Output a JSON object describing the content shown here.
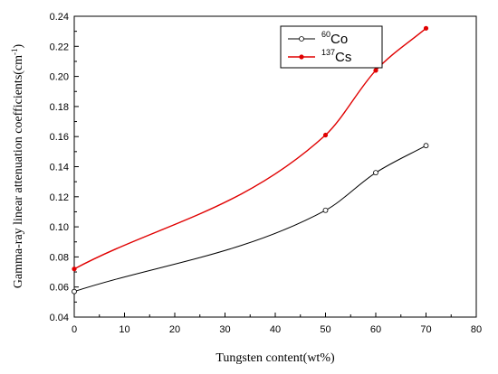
{
  "chart_data": {
    "type": "line",
    "title": "",
    "xlabel": "Tungsten content(wt%)",
    "ylabel_main": "Gamma-ray linear attenuation coefficients(cm",
    "ylabel_sup": "-1",
    "ylabel_close": ")",
    "xlim": [
      0,
      80
    ],
    "ylim": [
      0.04,
      0.24
    ],
    "x_ticks": [
      "0",
      "10",
      "20",
      "30",
      "40",
      "50",
      "60",
      "70",
      "80"
    ],
    "y_ticks": [
      "0.04",
      "0.06",
      "0.08",
      "0.10",
      "0.12",
      "0.14",
      "0.16",
      "0.18",
      "0.20",
      "0.22",
      "0.24"
    ],
    "grid": false,
    "legend_position": "top-right",
    "series": [
      {
        "sup": "60",
        "name": "Co",
        "color": "#000000",
        "marker": "open-circle",
        "x": [
          0,
          50,
          60,
          70
        ],
        "y": [
          0.057,
          0.111,
          0.136,
          0.154
        ]
      },
      {
        "sup": "137",
        "name": "Cs",
        "color": "#e00000",
        "marker": "filled-circle",
        "x": [
          0,
          50,
          60,
          70
        ],
        "y": [
          0.072,
          0.161,
          0.204,
          0.232
        ]
      }
    ]
  }
}
